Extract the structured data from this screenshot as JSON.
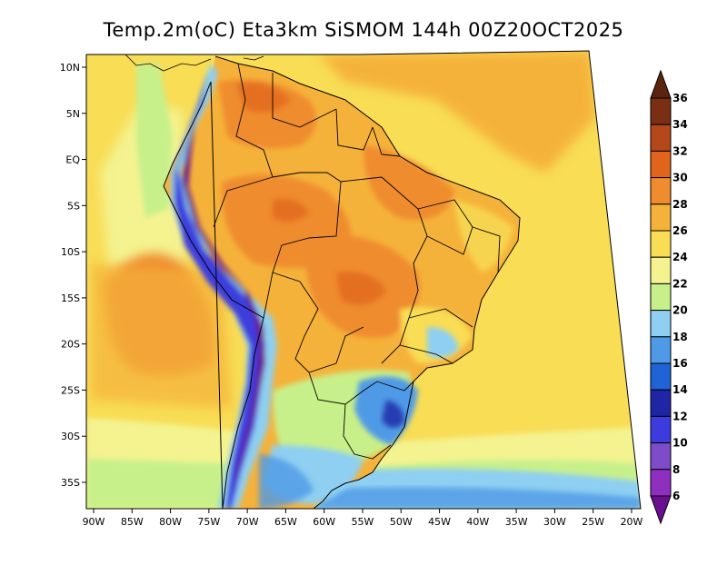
{
  "title": "Temp.2m(oC) Eta3km SiSMOM 144h 00Z20OCT2025",
  "map": {
    "lon_labels": [
      "90W",
      "85W",
      "80W",
      "75W",
      "70W",
      "65W",
      "60W",
      "55W",
      "50W",
      "45W",
      "40W",
      "35W",
      "30W",
      "25W",
      "20W"
    ],
    "lat_labels": [
      "10N",
      "5N",
      "EQ",
      "5S",
      "10S",
      "15S",
      "20S",
      "25S",
      "30S",
      "35S"
    ]
  },
  "colorbar": {
    "labels": [
      "6",
      "8",
      "10",
      "12",
      "14",
      "16",
      "18",
      "20",
      "22",
      "24",
      "26",
      "28",
      "30",
      "32",
      "34",
      "36"
    ],
    "colors": [
      "#6a0d8e",
      "#8f2fbf",
      "#7c4cc9",
      "#3c3cde",
      "#1f26a6",
      "#1f63d6",
      "#4f9ae6",
      "#8ecff2",
      "#c8f08a",
      "#f4f390",
      "#f8dd55",
      "#f5b23a",
      "#ef8c2d",
      "#e0641c",
      "#b4481a",
      "#7a2f12",
      "#5a2410"
    ]
  }
}
